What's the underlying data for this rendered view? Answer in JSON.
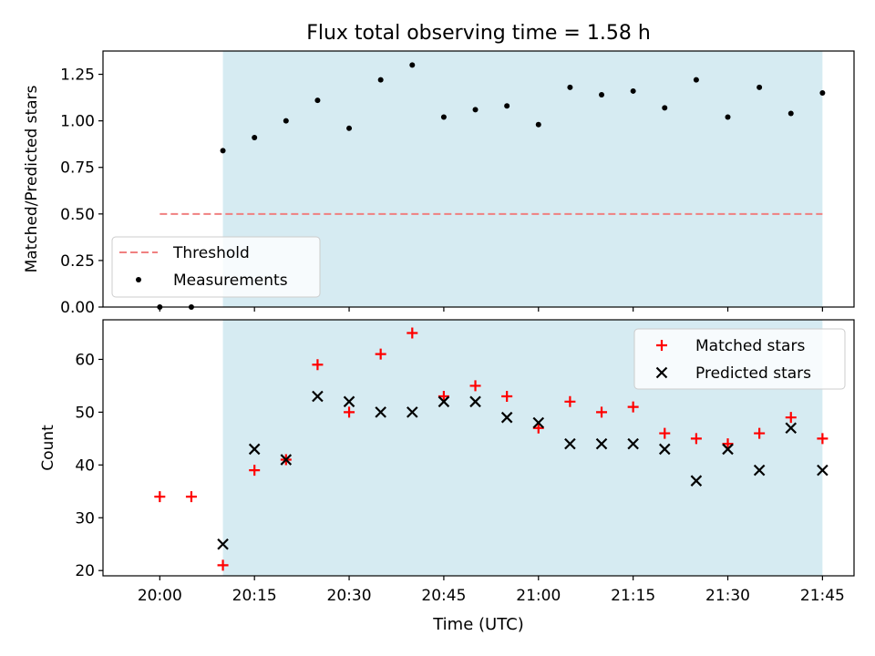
{
  "figure": {
    "title": "Flux total observing time = 1.58 h",
    "xlabel": "Time (UTC)"
  },
  "colors": {
    "shade": "#add8e6",
    "threshold": "#f08080",
    "measurements": "#000000",
    "matched": "#ff0000",
    "predicted": "#000000"
  },
  "chart_data": [
    {
      "type": "scatter",
      "ylabel": "Matched/Predicted stars",
      "ylim": [
        0,
        1.375
      ],
      "yticks": [
        0.0,
        0.25,
        0.5,
        0.75,
        1.0,
        1.25
      ],
      "ytick_labels": [
        "0.00",
        "0.25",
        "0.50",
        "0.75",
        "1.00",
        "1.25"
      ],
      "xlim": [
        "19:51",
        "21:50"
      ],
      "shaded_span": [
        "20:10",
        "21:45"
      ],
      "legend_position": "lower-left",
      "series": [
        {
          "name": "Threshold",
          "style": "dashed-line",
          "x": [
            "20:00",
            "21:45"
          ],
          "y": [
            0.5,
            0.5
          ]
        },
        {
          "name": "Measurements",
          "style": "dot",
          "x": [
            "20:00",
            "20:05",
            "20:10",
            "20:15",
            "20:20",
            "20:25",
            "20:30",
            "20:35",
            "20:40",
            "20:45",
            "20:50",
            "20:55",
            "21:00",
            "21:05",
            "21:10",
            "21:15",
            "21:20",
            "21:25",
            "21:30",
            "21:35",
            "21:40",
            "21:45"
          ],
          "y": [
            0.0,
            0.0,
            0.84,
            0.91,
            1.0,
            1.11,
            0.96,
            1.22,
            1.3,
            1.02,
            1.06,
            1.08,
            0.98,
            1.18,
            1.14,
            1.16,
            1.07,
            1.22,
            1.02,
            1.18,
            1.04,
            1.15
          ]
        }
      ]
    },
    {
      "type": "scatter",
      "ylabel": "Count",
      "xlabel": "Time (UTC)",
      "ylim": [
        19,
        67.5
      ],
      "yticks": [
        20,
        30,
        40,
        50,
        60
      ],
      "xticks": [
        "20:00",
        "20:15",
        "20:30",
        "20:45",
        "21:00",
        "21:15",
        "21:30",
        "21:45"
      ],
      "xlim": [
        "19:51",
        "21:50"
      ],
      "shaded_span": [
        "20:10",
        "21:45"
      ],
      "legend_position": "upper-right",
      "series": [
        {
          "name": "Matched stars",
          "marker": "plus",
          "x": [
            "20:00",
            "20:05",
            "20:10",
            "20:15",
            "20:20",
            "20:25",
            "20:30",
            "20:35",
            "20:40",
            "20:45",
            "20:50",
            "20:55",
            "21:00",
            "21:05",
            "21:10",
            "21:15",
            "21:20",
            "21:25",
            "21:30",
            "21:35",
            "21:40",
            "21:45"
          ],
          "y": [
            34,
            34,
            21,
            39,
            41,
            59,
            50,
            61,
            65,
            53,
            55,
            53,
            47,
            52,
            50,
            51,
            46,
            45,
            44,
            46,
            49,
            45
          ]
        },
        {
          "name": "Predicted stars",
          "marker": "x",
          "x": [
            "20:10",
            "20:15",
            "20:20",
            "20:25",
            "20:30",
            "20:35",
            "20:40",
            "20:45",
            "20:50",
            "20:55",
            "21:00",
            "21:05",
            "21:10",
            "21:15",
            "21:20",
            "21:25",
            "21:30",
            "21:35",
            "21:40",
            "21:45"
          ],
          "y": [
            25,
            43,
            41,
            53,
            52,
            50,
            50,
            52,
            52,
            49,
            48,
            44,
            44,
            44,
            43,
            37,
            43,
            39,
            47,
            39
          ]
        }
      ]
    }
  ]
}
